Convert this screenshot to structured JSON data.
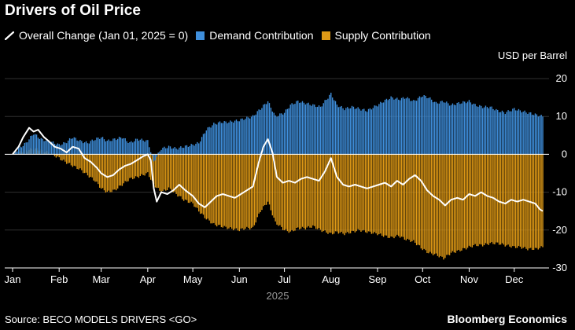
{
  "title": "Drivers of Oil Price",
  "legend": {
    "overall": "Overall Change (Jan 01, 2025 = 0)",
    "demand": "Demand Contribution",
    "supply": "Supply Contribution"
  },
  "unit_label": "USD per Barrel",
  "source": "Source: BECO MODELS DRIVERS <GO>",
  "brand": "Bloomberg Economics",
  "year_label": "2025",
  "colors": {
    "demand": "#3f8fdc",
    "supply": "#e09a16",
    "overall": "#ffffff",
    "grid": "#2f2f2f",
    "zero": "#ffffff",
    "background": "#000000"
  },
  "chart_data": {
    "type": "area",
    "y_axis": {
      "position": "right",
      "ylim": [
        -30,
        20
      ],
      "ticks": [
        20,
        10,
        0,
        -10,
        -20,
        -30
      ],
      "tick_labels": [
        "20",
        "10",
        "0",
        "-10",
        "-20",
        "-30"
      ]
    },
    "x_axis": {
      "ticks": [
        "Jan",
        "Feb",
        "Mar",
        "Apr",
        "May",
        "Jun",
        "Jul",
        "Aug",
        "Sep",
        "Oct",
        "Nov",
        "Dec"
      ],
      "date_range": [
        "2025-01-01",
        "2025-12-20"
      ]
    },
    "grid": true,
    "legend_position": "top-left",
    "series": [
      {
        "name": "Demand Contribution",
        "kind": "bar",
        "points": [
          [
            "2025-01-01",
            0
          ],
          [
            "2025-01-05",
            1.5
          ],
          [
            "2025-01-10",
            3.0
          ],
          [
            "2025-01-15",
            5.5
          ],
          [
            "2025-01-20",
            4.0
          ],
          [
            "2025-01-25",
            3.5
          ],
          [
            "2025-02-01",
            2.5
          ],
          [
            "2025-02-05",
            3.0
          ],
          [
            "2025-02-10",
            4.5
          ],
          [
            "2025-02-15",
            3.5
          ],
          [
            "2025-02-20",
            3.0
          ],
          [
            "2025-02-25",
            4.0
          ],
          [
            "2025-03-01",
            4.5
          ],
          [
            "2025-03-05",
            3.5
          ],
          [
            "2025-03-10",
            4.0
          ],
          [
            "2025-03-15",
            4.5
          ],
          [
            "2025-03-20",
            3.0
          ],
          [
            "2025-03-25",
            4.0
          ],
          [
            "2025-04-01",
            3.5
          ],
          [
            "2025-04-05",
            -2.0
          ],
          [
            "2025-04-10",
            1.5
          ],
          [
            "2025-04-15",
            2.0
          ],
          [
            "2025-04-20",
            1.5
          ],
          [
            "2025-04-25",
            2.0
          ],
          [
            "2025-05-01",
            2.5
          ],
          [
            "2025-05-05",
            3.0
          ],
          [
            "2025-05-10",
            6.5
          ],
          [
            "2025-05-15",
            8.0
          ],
          [
            "2025-05-20",
            8.5
          ],
          [
            "2025-05-25",
            8.5
          ],
          [
            "2025-06-01",
            9.0
          ],
          [
            "2025-06-05",
            9.5
          ],
          [
            "2025-06-10",
            10.0
          ],
          [
            "2025-06-15",
            12.0
          ],
          [
            "2025-06-20",
            14.0
          ],
          [
            "2025-06-25",
            10.0
          ],
          [
            "2025-07-01",
            11.0
          ],
          [
            "2025-07-05",
            13.0
          ],
          [
            "2025-07-10",
            14.0
          ],
          [
            "2025-07-15",
            13.5
          ],
          [
            "2025-07-20",
            13.0
          ],
          [
            "2025-07-25",
            12.5
          ],
          [
            "2025-08-01",
            16.0
          ],
          [
            "2025-08-05",
            13.0
          ],
          [
            "2025-08-10",
            12.0
          ],
          [
            "2025-08-15",
            12.5
          ],
          [
            "2025-08-20",
            12.0
          ],
          [
            "2025-08-25",
            11.5
          ],
          [
            "2025-09-01",
            13.0
          ],
          [
            "2025-09-05",
            14.0
          ],
          [
            "2025-09-10",
            15.0
          ],
          [
            "2025-09-15",
            14.5
          ],
          [
            "2025-09-20",
            15.0
          ],
          [
            "2025-09-25",
            14.0
          ],
          [
            "2025-10-01",
            15.5
          ],
          [
            "2025-10-05",
            15.0
          ],
          [
            "2025-10-10",
            13.5
          ],
          [
            "2025-10-15",
            14.0
          ],
          [
            "2025-10-20",
            13.0
          ],
          [
            "2025-10-25",
            13.5
          ],
          [
            "2025-11-01",
            14.0
          ],
          [
            "2025-11-05",
            13.0
          ],
          [
            "2025-11-10",
            12.5
          ],
          [
            "2025-11-15",
            12.5
          ],
          [
            "2025-11-20",
            11.5
          ],
          [
            "2025-11-25",
            11.0
          ],
          [
            "2025-12-01",
            12.0
          ],
          [
            "2025-12-05",
            11.5
          ],
          [
            "2025-12-10",
            11.0
          ],
          [
            "2025-12-15",
            10.5
          ],
          [
            "2025-12-20",
            10.0
          ]
        ]
      },
      {
        "name": "Supply Contribution",
        "kind": "bar",
        "points": [
          [
            "2025-01-01",
            0
          ],
          [
            "2025-01-05",
            0.5
          ],
          [
            "2025-01-10",
            1.0
          ],
          [
            "2025-01-15",
            1.5
          ],
          [
            "2025-01-20",
            1.0
          ],
          [
            "2025-01-25",
            0.5
          ],
          [
            "2025-02-01",
            -1.0
          ],
          [
            "2025-02-05",
            -2.0
          ],
          [
            "2025-02-10",
            -3.0
          ],
          [
            "2025-02-15",
            -4.0
          ],
          [
            "2025-02-20",
            -5.5
          ],
          [
            "2025-02-25",
            -7.0
          ],
          [
            "2025-03-01",
            -9.0
          ],
          [
            "2025-03-05",
            -10.0
          ],
          [
            "2025-03-10",
            -9.5
          ],
          [
            "2025-03-15",
            -8.0
          ],
          [
            "2025-03-20",
            -6.5
          ],
          [
            "2025-03-25",
            -6.0
          ],
          [
            "2025-04-01",
            -5.0
          ],
          [
            "2025-04-05",
            -8.0
          ],
          [
            "2025-04-10",
            -10.0
          ],
          [
            "2025-04-15",
            -9.0
          ],
          [
            "2025-04-20",
            -10.5
          ],
          [
            "2025-04-25",
            -12.0
          ],
          [
            "2025-05-01",
            -13.0
          ],
          [
            "2025-05-05",
            -15.0
          ],
          [
            "2025-05-10",
            -17.0
          ],
          [
            "2025-05-15",
            -18.5
          ],
          [
            "2025-05-20",
            -19.0
          ],
          [
            "2025-05-25",
            -19.5
          ],
          [
            "2025-06-01",
            -20.0
          ],
          [
            "2025-06-05",
            -19.5
          ],
          [
            "2025-06-10",
            -19.5
          ],
          [
            "2025-06-15",
            -15.0
          ],
          [
            "2025-06-20",
            -12.5
          ],
          [
            "2025-06-25",
            -18.0
          ],
          [
            "2025-07-01",
            -20.0
          ],
          [
            "2025-07-05",
            -20.5
          ],
          [
            "2025-07-10",
            -19.5
          ],
          [
            "2025-07-15",
            -19.5
          ],
          [
            "2025-07-20",
            -19.0
          ],
          [
            "2025-07-25",
            -20.0
          ],
          [
            "2025-08-01",
            -21.0
          ],
          [
            "2025-08-05",
            -20.5
          ],
          [
            "2025-08-10",
            -21.0
          ],
          [
            "2025-08-15",
            -20.5
          ],
          [
            "2025-08-20",
            -20.0
          ],
          [
            "2025-08-25",
            -20.5
          ],
          [
            "2025-09-01",
            -21.0
          ],
          [
            "2025-09-05",
            -21.5
          ],
          [
            "2025-09-10",
            -22.0
          ],
          [
            "2025-09-15",
            -21.5
          ],
          [
            "2025-09-20",
            -22.5
          ],
          [
            "2025-09-25",
            -23.0
          ],
          [
            "2025-10-01",
            -25.0
          ],
          [
            "2025-10-05",
            -26.0
          ],
          [
            "2025-10-10",
            -26.5
          ],
          [
            "2025-10-15",
            -27.5
          ],
          [
            "2025-10-20",
            -26.0
          ],
          [
            "2025-10-25",
            -25.5
          ],
          [
            "2025-11-01",
            -24.5
          ],
          [
            "2025-11-05",
            -24.0
          ],
          [
            "2025-11-10",
            -24.0
          ],
          [
            "2025-11-15",
            -23.5
          ],
          [
            "2025-11-20",
            -23.5
          ],
          [
            "2025-11-25",
            -24.0
          ],
          [
            "2025-12-01",
            -24.5
          ],
          [
            "2025-12-05",
            -24.5
          ],
          [
            "2025-12-10",
            -25.0
          ],
          [
            "2025-12-15",
            -25.0
          ],
          [
            "2025-12-20",
            -24.5
          ]
        ]
      },
      {
        "name": "Overall Change (Jan 01, 2025 = 0)",
        "kind": "line",
        "points": [
          [
            "2025-01-01",
            0
          ],
          [
            "2025-01-05",
            2.0
          ],
          [
            "2025-01-08",
            4.5
          ],
          [
            "2025-01-12",
            7.0
          ],
          [
            "2025-01-15",
            6.0
          ],
          [
            "2025-01-18",
            6.5
          ],
          [
            "2025-01-22",
            4.5
          ],
          [
            "2025-01-25",
            3.5
          ],
          [
            "2025-01-29",
            2.0
          ],
          [
            "2025-02-02",
            1.5
          ],
          [
            "2025-02-06",
            0.5
          ],
          [
            "2025-02-10",
            2.0
          ],
          [
            "2025-02-14",
            1.5
          ],
          [
            "2025-02-18",
            -1.0
          ],
          [
            "2025-02-22",
            -2.0
          ],
          [
            "2025-02-26",
            -3.5
          ],
          [
            "2025-03-01",
            -5.0
          ],
          [
            "2025-03-05",
            -6.0
          ],
          [
            "2025-03-09",
            -5.5
          ],
          [
            "2025-03-13",
            -4.0
          ],
          [
            "2025-03-17",
            -3.0
          ],
          [
            "2025-03-21",
            -2.5
          ],
          [
            "2025-03-25",
            -1.5
          ],
          [
            "2025-03-29",
            -0.5
          ],
          [
            "2025-04-01",
            0.0
          ],
          [
            "2025-04-03",
            -1.5
          ],
          [
            "2025-04-05",
            -9.0
          ],
          [
            "2025-04-07",
            -12.5
          ],
          [
            "2025-04-10",
            -10.0
          ],
          [
            "2025-04-14",
            -10.5
          ],
          [
            "2025-04-18",
            -9.5
          ],
          [
            "2025-04-22",
            -8.0
          ],
          [
            "2025-04-26",
            -9.5
          ],
          [
            "2025-05-01",
            -11.0
          ],
          [
            "2025-05-05",
            -13.0
          ],
          [
            "2025-05-09",
            -14.0
          ],
          [
            "2025-05-13",
            -12.5
          ],
          [
            "2025-05-17",
            -11.0
          ],
          [
            "2025-05-21",
            -10.5
          ],
          [
            "2025-05-25",
            -11.0
          ],
          [
            "2025-05-29",
            -11.5
          ],
          [
            "2025-06-02",
            -10.5
          ],
          [
            "2025-06-06",
            -9.5
          ],
          [
            "2025-06-10",
            -8.5
          ],
          [
            "2025-06-14",
            -2.0
          ],
          [
            "2025-06-17",
            2.0
          ],
          [
            "2025-06-20",
            4.0
          ],
          [
            "2025-06-23",
            0.5
          ],
          [
            "2025-06-26",
            -6.0
          ],
          [
            "2025-06-30",
            -7.5
          ],
          [
            "2025-07-04",
            -7.0
          ],
          [
            "2025-07-08",
            -7.5
          ],
          [
            "2025-07-12",
            -6.5
          ],
          [
            "2025-07-16",
            -6.0
          ],
          [
            "2025-07-20",
            -6.5
          ],
          [
            "2025-07-24",
            -7.0
          ],
          [
            "2025-07-28",
            -4.5
          ],
          [
            "2025-08-01",
            -1.0
          ],
          [
            "2025-08-05",
            -6.0
          ],
          [
            "2025-08-09",
            -8.0
          ],
          [
            "2025-08-13",
            -8.5
          ],
          [
            "2025-08-17",
            -8.0
          ],
          [
            "2025-08-21",
            -8.5
          ],
          [
            "2025-08-25",
            -9.0
          ],
          [
            "2025-08-29",
            -8.5
          ],
          [
            "2025-09-02",
            -8.0
          ],
          [
            "2025-09-06",
            -7.5
          ],
          [
            "2025-09-10",
            -8.5
          ],
          [
            "2025-09-14",
            -7.0
          ],
          [
            "2025-09-18",
            -8.0
          ],
          [
            "2025-09-22",
            -6.5
          ],
          [
            "2025-09-26",
            -5.5
          ],
          [
            "2025-09-30",
            -7.0
          ],
          [
            "2025-10-04",
            -9.5
          ],
          [
            "2025-10-08",
            -11.0
          ],
          [
            "2025-10-12",
            -12.0
          ],
          [
            "2025-10-16",
            -13.5
          ],
          [
            "2025-10-20",
            -12.0
          ],
          [
            "2025-10-24",
            -11.5
          ],
          [
            "2025-10-28",
            -12.0
          ],
          [
            "2025-11-01",
            -10.5
          ],
          [
            "2025-11-05",
            -11.0
          ],
          [
            "2025-11-09",
            -10.0
          ],
          [
            "2025-11-13",
            -11.0
          ],
          [
            "2025-11-17",
            -11.5
          ],
          [
            "2025-11-21",
            -12.5
          ],
          [
            "2025-11-25",
            -13.0
          ],
          [
            "2025-11-29",
            -12.0
          ],
          [
            "2025-12-03",
            -12.5
          ],
          [
            "2025-12-07",
            -12.0
          ],
          [
            "2025-12-11",
            -12.5
          ],
          [
            "2025-12-15",
            -13.0
          ],
          [
            "2025-12-18",
            -14.5
          ],
          [
            "2025-12-20",
            -15.0
          ]
        ]
      }
    ]
  }
}
